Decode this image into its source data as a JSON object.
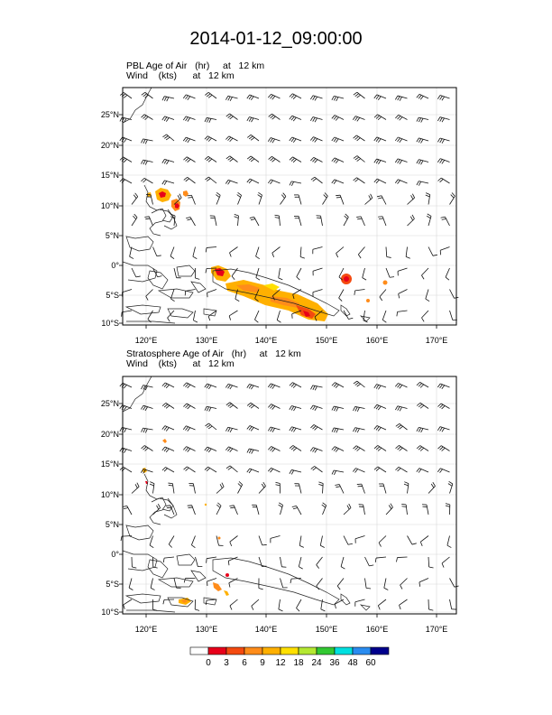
{
  "title": "2014-01-12_09:00:00",
  "panels": [
    {
      "id": "pbl",
      "subtitle_line1": "PBL Age of Air   (hr)     at   12 km",
      "subtitle_line2": "Wind    (kts)      at   12 km",
      "lat_labels": [
        "25°N",
        "20°N",
        "15°N",
        "10°N",
        "5°N",
        "0°",
        "5°S",
        "10°S"
      ],
      "lon_labels": [
        "120°E",
        "130°E",
        "140°E",
        "150°E",
        "160°E",
        "170°E"
      ]
    },
    {
      "id": "strat",
      "subtitle_line1": "Stratosphere Age of Air   (hr)     at   12 km",
      "subtitle_line2": "Wind    (kts)      at   12 km",
      "lat_labels": [
        "25°N",
        "20°N",
        "15°N",
        "10°N",
        "5°N",
        "0°",
        "5°S",
        "10°S"
      ],
      "lon_labels": [
        "120°E",
        "130°E",
        "140°E",
        "150°E",
        "160°E",
        "170°E"
      ]
    }
  ],
  "colorbar": {
    "labels": [
      "0",
      "3",
      "6",
      "9",
      "12",
      "18",
      "24",
      "36",
      "48",
      "60"
    ],
    "colors": [
      "#ffffff",
      "#e8001a",
      "#f44a10",
      "#ff8c1a",
      "#ffb000",
      "#ffe000",
      "#b4e832",
      "#32c832",
      "#00e0e0",
      "#2a8cf0",
      "#00008c"
    ]
  }
}
